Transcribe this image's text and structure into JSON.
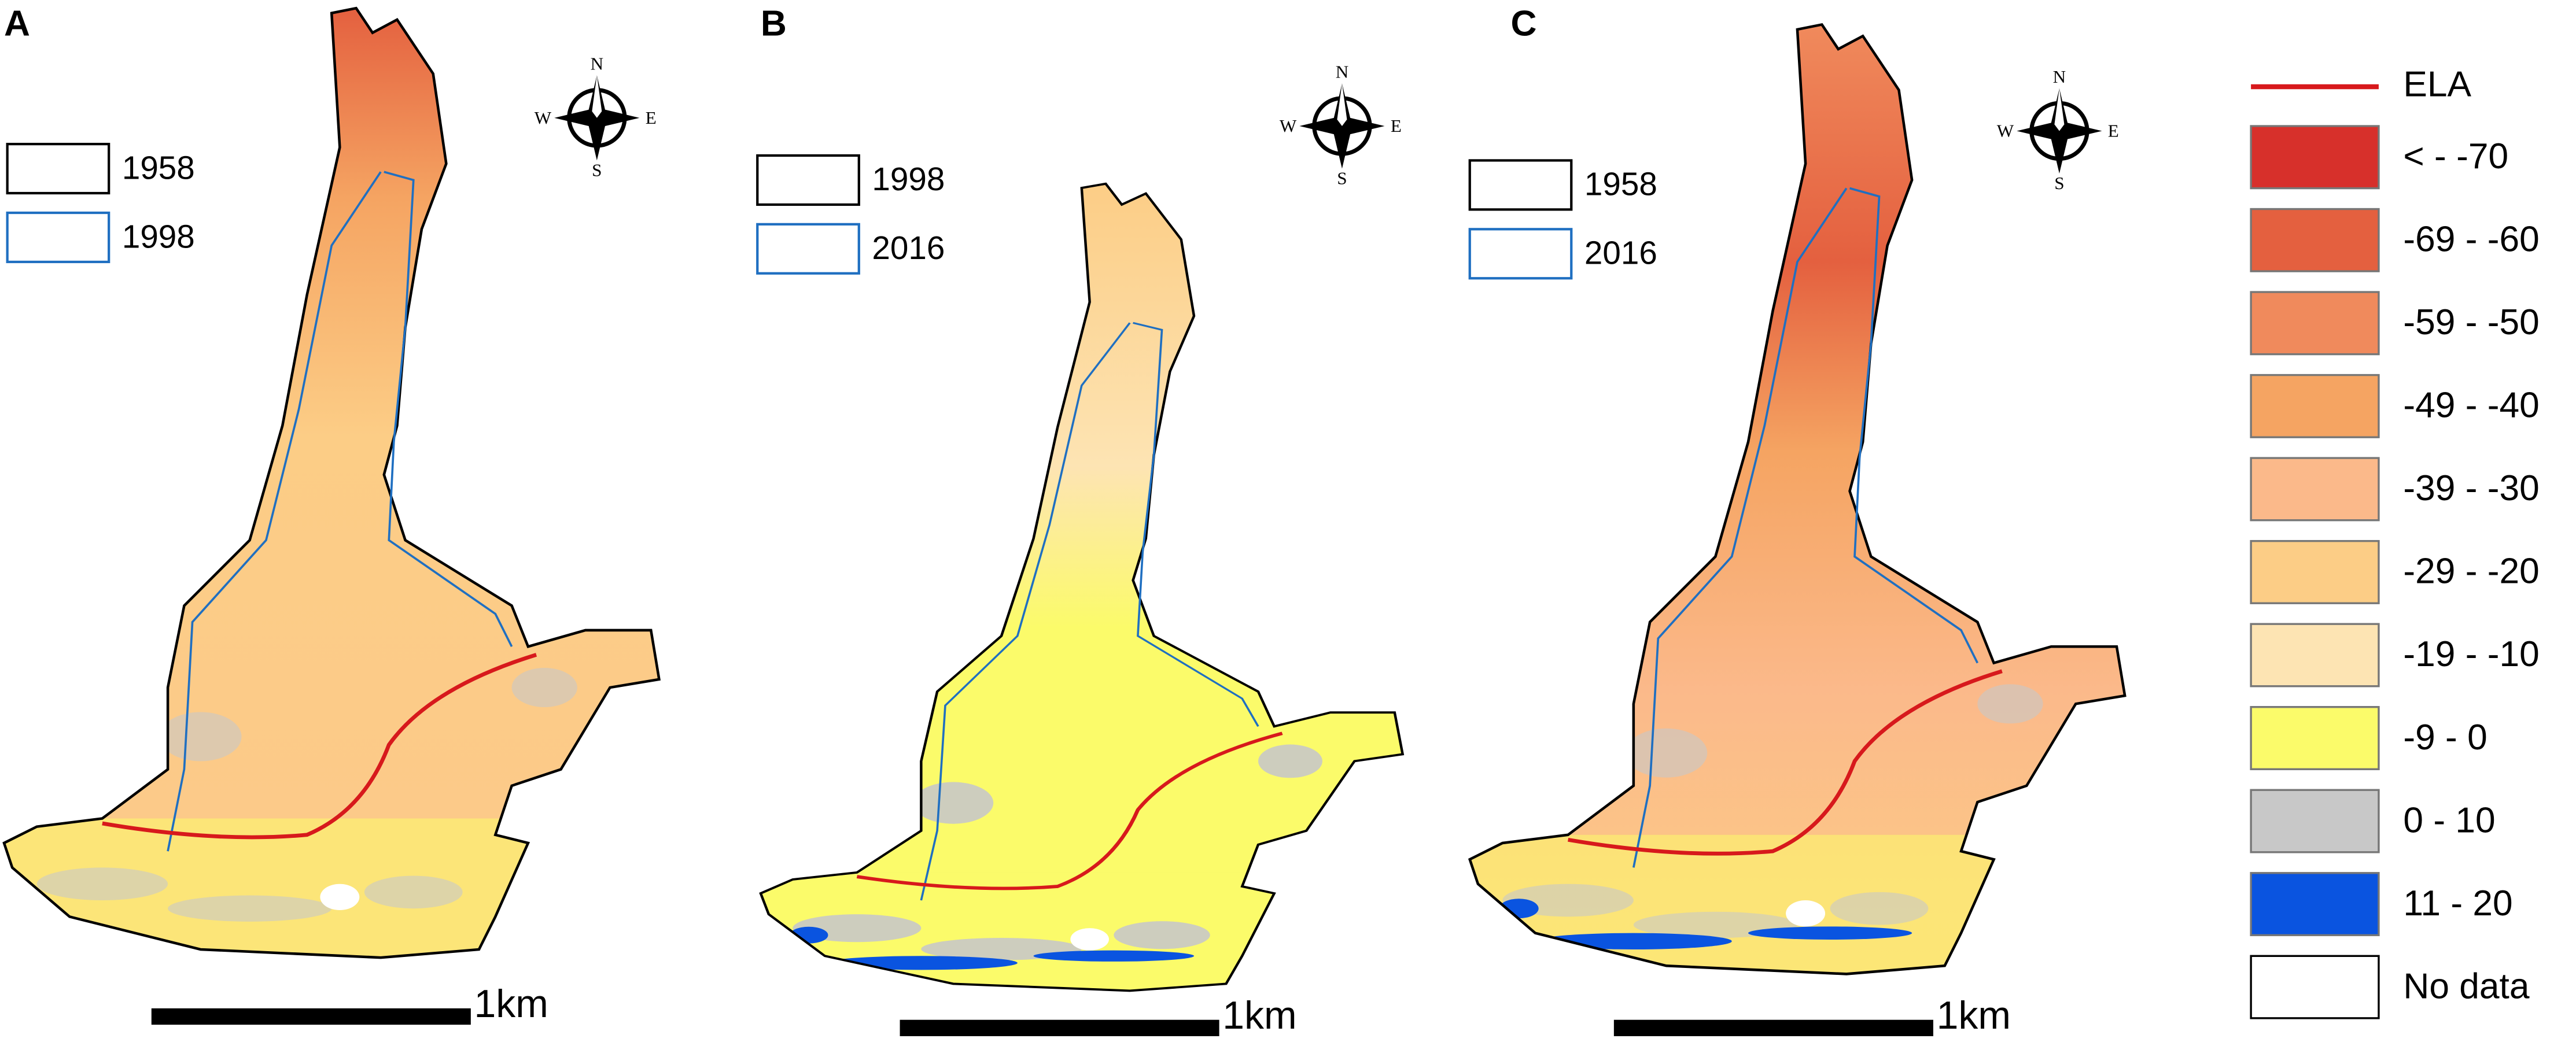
{
  "panels": [
    {
      "label": "A",
      "legend": [
        "1958",
        "1998"
      ],
      "scale": "1km"
    },
    {
      "label": "B",
      "legend": [
        "1998",
        "2016"
      ],
      "scale": "1km"
    },
    {
      "label": "C",
      "legend": [
        "1958",
        "2016"
      ],
      "scale": "1km"
    }
  ],
  "compass": {
    "n": "N",
    "s": "S",
    "e": "E",
    "w": "W"
  },
  "legend": {
    "ela": {
      "label": "ELA",
      "color": "#d7191c"
    },
    "outlines": [
      "#000000",
      "#1f6fc1"
    ],
    "classes": [
      {
        "label": "< - -70",
        "color": "#d7302b"
      },
      {
        "label": "-69 - -60",
        "color": "#e4603f"
      },
      {
        "label": "-59 - -50",
        "color": "#f08a5c"
      },
      {
        "label": "-49 - -40",
        "color": "#f5a462"
      },
      {
        "label": "-39 - -30",
        "color": "#fbb98a"
      },
      {
        "label": "-29 - -20",
        "color": "#fccd86"
      },
      {
        "label": "-19 - -10",
        "color": "#fde4b3"
      },
      {
        "label": "-9 - 0",
        "color": "#fbfb6a"
      },
      {
        "label": "0 - 10",
        "color": "#c8c8c8"
      },
      {
        "label": "11 - 20",
        "color": "#0a54e0"
      },
      {
        "label": "No data",
        "color": "#ffffff"
      }
    ]
  }
}
